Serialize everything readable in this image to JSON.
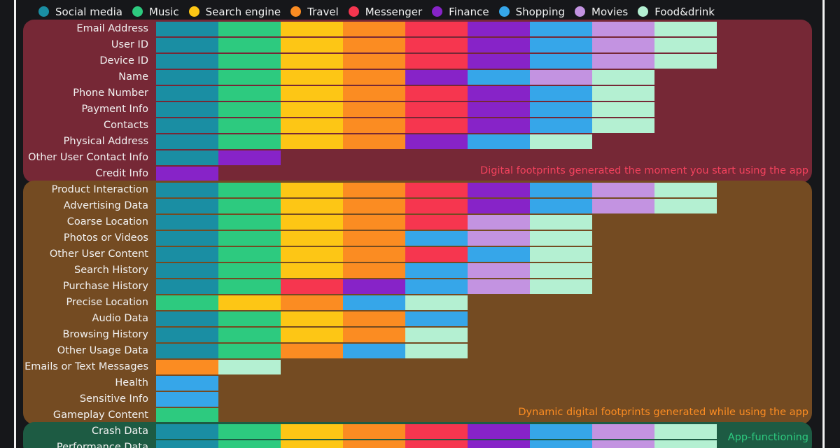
{
  "categories_legend": [
    {
      "name": "Social media",
      "color": "#1a8ea3"
    },
    {
      "name": "Music",
      "color": "#2dca7f"
    },
    {
      "name": "Search engine",
      "color": "#fdc615"
    },
    {
      "name": "Travel",
      "color": "#fb8c22"
    },
    {
      "name": "Messenger",
      "color": "#f6364f"
    },
    {
      "name": "Finance",
      "color": "#8723c8"
    },
    {
      "name": "Shopping",
      "color": "#36a6e9"
    },
    {
      "name": "Movies",
      "color": "#c393e1"
    },
    {
      "name": "Food&drink",
      "color": "#b4f0d2"
    }
  ],
  "chart_data": {
    "type": "table",
    "groups": [
      {
        "caption": "Digital footprints generated the moment you start using the app",
        "panel_color": "#762836",
        "caption_color": "#f3425d",
        "rows": [
          {
            "label": "Email Address",
            "cells": [
              "Social media",
              "Music",
              "Search engine",
              "Travel",
              "Messenger",
              "Finance",
              "Shopping",
              "Movies",
              "Food&drink"
            ]
          },
          {
            "label": "User ID",
            "cells": [
              "Social media",
              "Music",
              "Search engine",
              "Travel",
              "Messenger",
              "Finance",
              "Shopping",
              "Movies",
              "Food&drink"
            ]
          },
          {
            "label": "Device ID",
            "cells": [
              "Social media",
              "Music",
              "Search engine",
              "Travel",
              "Messenger",
              "Finance",
              "Shopping",
              "Movies",
              "Food&drink"
            ]
          },
          {
            "label": "Name",
            "cells": [
              "Social media",
              "Music",
              "Search engine",
              "Travel",
              "Finance",
              "Shopping",
              "Movies",
              "Food&drink"
            ]
          },
          {
            "label": "Phone Number",
            "cells": [
              "Social media",
              "Music",
              "Search engine",
              "Travel",
              "Messenger",
              "Finance",
              "Shopping",
              "Food&drink"
            ]
          },
          {
            "label": "Payment Info",
            "cells": [
              "Social media",
              "Music",
              "Search engine",
              "Travel",
              "Messenger",
              "Finance",
              "Shopping",
              "Food&drink"
            ]
          },
          {
            "label": "Contacts",
            "cells": [
              "Social media",
              "Music",
              "Search engine",
              "Travel",
              "Messenger",
              "Finance",
              "Shopping",
              "Food&drink"
            ]
          },
          {
            "label": "Physical Address",
            "cells": [
              "Social media",
              "Music",
              "Search engine",
              "Travel",
              "Finance",
              "Shopping",
              "Food&drink"
            ]
          },
          {
            "label": "Other User Contact Info",
            "cells": [
              "Social media",
              "Finance"
            ]
          },
          {
            "label": "Credit Info",
            "cells": [
              "Finance"
            ]
          }
        ]
      },
      {
        "caption": "Dynamic digital footprints generated while using the app",
        "panel_color": "#744b22",
        "caption_color": "#fb8c22",
        "rows": [
          {
            "label": "Product Interaction",
            "cells": [
              "Social media",
              "Music",
              "Search engine",
              "Travel",
              "Messenger",
              "Finance",
              "Shopping",
              "Movies",
              "Food&drink"
            ]
          },
          {
            "label": "Advertising Data",
            "cells": [
              "Social media",
              "Music",
              "Search engine",
              "Travel",
              "Messenger",
              "Finance",
              "Shopping",
              "Movies",
              "Food&drink"
            ]
          },
          {
            "label": "Coarse Location",
            "cells": [
              "Social media",
              "Music",
              "Search engine",
              "Travel",
              "Messenger",
              "Movies",
              "Food&drink"
            ]
          },
          {
            "label": "Photos or Videos",
            "cells": [
              "Social media",
              "Music",
              "Search engine",
              "Travel",
              "Shopping",
              "Movies",
              "Food&drink"
            ]
          },
          {
            "label": "Other User Content",
            "cells": [
              "Social media",
              "Music",
              "Search engine",
              "Travel",
              "Messenger",
              "Shopping",
              "Food&drink"
            ]
          },
          {
            "label": "Search History",
            "cells": [
              "Social media",
              "Music",
              "Search engine",
              "Travel",
              "Shopping",
              "Movies",
              "Food&drink"
            ]
          },
          {
            "label": "Purchase History",
            "cells": [
              "Social media",
              "Music",
              "Messenger",
              "Finance",
              "Shopping",
              "Movies",
              "Food&drink"
            ]
          },
          {
            "label": "Precise Location",
            "cells": [
              "Music",
              "Search engine",
              "Travel",
              "Shopping",
              "Food&drink"
            ]
          },
          {
            "label": "Audio Data",
            "cells": [
              "Social media",
              "Music",
              "Search engine",
              "Travel",
              "Shopping"
            ]
          },
          {
            "label": "Browsing History",
            "cells": [
              "Social media",
              "Music",
              "Search engine",
              "Travel",
              "Food&drink"
            ]
          },
          {
            "label": "Other Usage Data",
            "cells": [
              "Social media",
              "Music",
              "Travel",
              "Shopping",
              "Food&drink"
            ]
          },
          {
            "label": "Emails or Text Messages",
            "cells": [
              "Travel",
              "Food&drink"
            ]
          },
          {
            "label": "Health",
            "cells": [
              "Shopping"
            ]
          },
          {
            "label": "Sensitive Info",
            "cells": [
              "Shopping"
            ]
          },
          {
            "label": "Gameplay Content",
            "cells": [
              "Music"
            ]
          }
        ]
      },
      {
        "caption": "App-functioning",
        "panel_color": "#1d5b43",
        "caption_color": "#2dca7f",
        "rows": [
          {
            "label": "Crash Data",
            "cells": [
              "Social media",
              "Music",
              "Search engine",
              "Travel",
              "Messenger",
              "Finance",
              "Shopping",
              "Movies",
              "Food&drink"
            ]
          },
          {
            "label": "Performance Data",
            "cells": [
              "Social media",
              "Music",
              "Search engine",
              "Travel",
              "Messenger",
              "Finance",
              "Shopping",
              "Movies",
              "Food&drink"
            ]
          }
        ]
      }
    ]
  }
}
